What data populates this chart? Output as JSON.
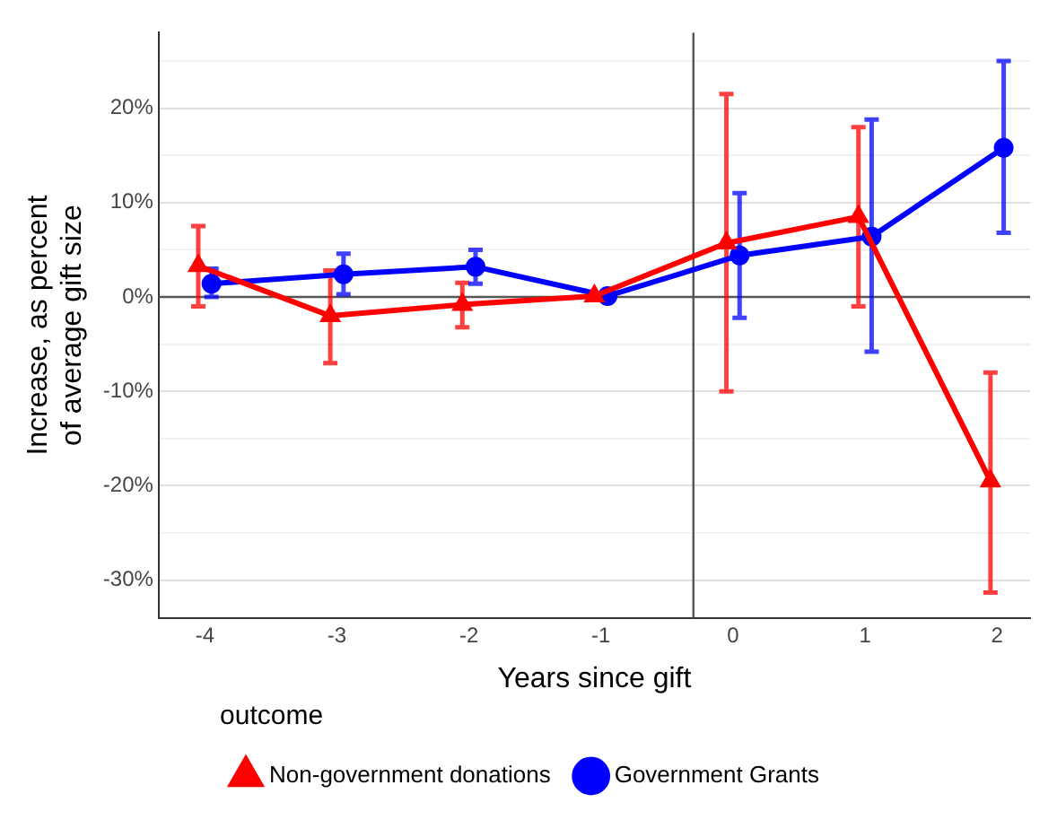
{
  "chart_data": {
    "type": "line",
    "xlabel": "Years since gift",
    "ylabel": "Increase, as percent\nof average gift size",
    "legend_title": "outcome",
    "legend": "bottom",
    "grid": "y",
    "line_style": "solid",
    "xlim": [
      -4.35,
      2.25
    ],
    "xticks": [
      -4,
      -3,
      -2,
      -1,
      0,
      1,
      2
    ],
    "ylim": [
      -34,
      28
    ],
    "yticks": [
      {
        "value": -30,
        "label": "-30%"
      },
      {
        "value": -25,
        "label": null
      },
      {
        "value": -20,
        "label": "-20%"
      },
      {
        "value": -15,
        "label": null
      },
      {
        "value": -10,
        "label": "-10%"
      },
      {
        "value": -5,
        "label": null
      },
      {
        "value": 0,
        "label": "0%"
      },
      {
        "value": 5,
        "label": null
      },
      {
        "value": 10,
        "label": "10%"
      },
      {
        "value": 15,
        "label": null
      },
      {
        "value": 20,
        "label": "20%"
      },
      {
        "value": 25,
        "label": null
      }
    ],
    "ref_lines": [
      {
        "axis": "y",
        "value": 0,
        "color": "#555555"
      },
      {
        "axis": "x",
        "value": -0.3,
        "color": "#555555"
      }
    ],
    "series": [
      {
        "name": "Non-government donations",
        "color": "#ff0000",
        "marker": "triangle",
        "x": [
          -4.05,
          -3.05,
          -2.05,
          -1.05,
          -0.05,
          0.95,
          1.95
        ],
        "values": [
          3.3,
          -2,
          -0.8,
          0.1,
          5.7,
          8.5,
          -19.5
        ],
        "errors": [
          [
            -1,
            7.5
          ],
          [
            -7,
            2.8
          ],
          [
            -3.2,
            1.5
          ],
          null,
          [
            -10,
            21.5
          ],
          [
            -1,
            18
          ],
          [
            -31.3,
            -8
          ]
        ]
      },
      {
        "name": "Government Grants",
        "color": "#0000ff",
        "marker": "circle",
        "x": [
          -3.95,
          -2.95,
          -1.95,
          -0.95,
          0.05,
          1.05,
          2.05
        ],
        "values": [
          1.4,
          2.4,
          3.2,
          0.1,
          4.4,
          6.4,
          15.8
        ],
        "errors": [
          [
            0,
            3
          ],
          [
            0.3,
            4.6
          ],
          [
            1.4,
            5
          ],
          null,
          [
            -2.2,
            11
          ],
          [
            -5.8,
            18.8
          ],
          [
            6.8,
            25
          ]
        ]
      }
    ]
  }
}
